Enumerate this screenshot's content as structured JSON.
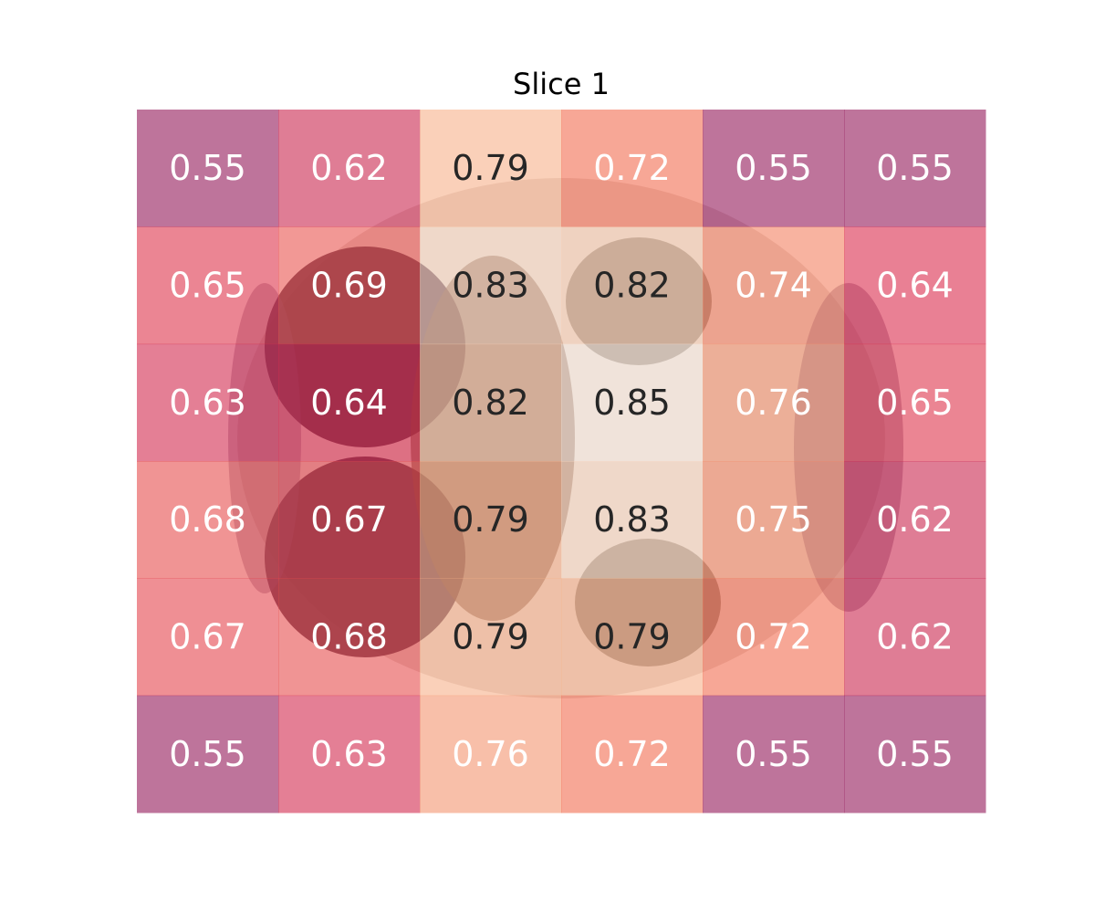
{
  "chart_data": {
    "type": "heatmap",
    "title": "Slice 1",
    "xlabel": "",
    "ylabel": "",
    "colormap": "rocket",
    "background": "brain MRI slice shown beneath semi-transparent heatmap",
    "values": [
      [
        0.55,
        0.62,
        0.79,
        0.72,
        0.55,
        0.55
      ],
      [
        0.65,
        0.69,
        0.83,
        0.82,
        0.74,
        0.64
      ],
      [
        0.63,
        0.64,
        0.82,
        0.85,
        0.76,
        0.65
      ],
      [
        0.68,
        0.67,
        0.79,
        0.83,
        0.75,
        0.62
      ],
      [
        0.67,
        0.68,
        0.79,
        0.79,
        0.72,
        0.62
      ],
      [
        0.55,
        0.63,
        0.76,
        0.72,
        0.55,
        0.55
      ]
    ],
    "labels": [
      [
        "0.55",
        "0.62",
        "0.79",
        "0.72",
        "0.55",
        "0.55"
      ],
      [
        "0.65",
        "0.69",
        "0.83",
        "0.82",
        "0.74",
        "0.64"
      ],
      [
        "0.63",
        "0.64",
        "0.82",
        "0.85",
        "0.76",
        "0.65"
      ],
      [
        "0.68",
        "0.67",
        "0.79",
        "0.83",
        "0.75",
        "0.62"
      ],
      [
        "0.67",
        "0.68",
        "0.79",
        "0.79",
        "0.72",
        "0.62"
      ],
      [
        "0.55",
        "0.63",
        "0.76",
        "0.72",
        "0.55",
        "0.55"
      ]
    ],
    "value_range": [
      0.55,
      0.85
    ],
    "grid": false,
    "axes_visible": false,
    "text_colors": {
      "light": "#ffffff",
      "dark": "#262626"
    }
  }
}
